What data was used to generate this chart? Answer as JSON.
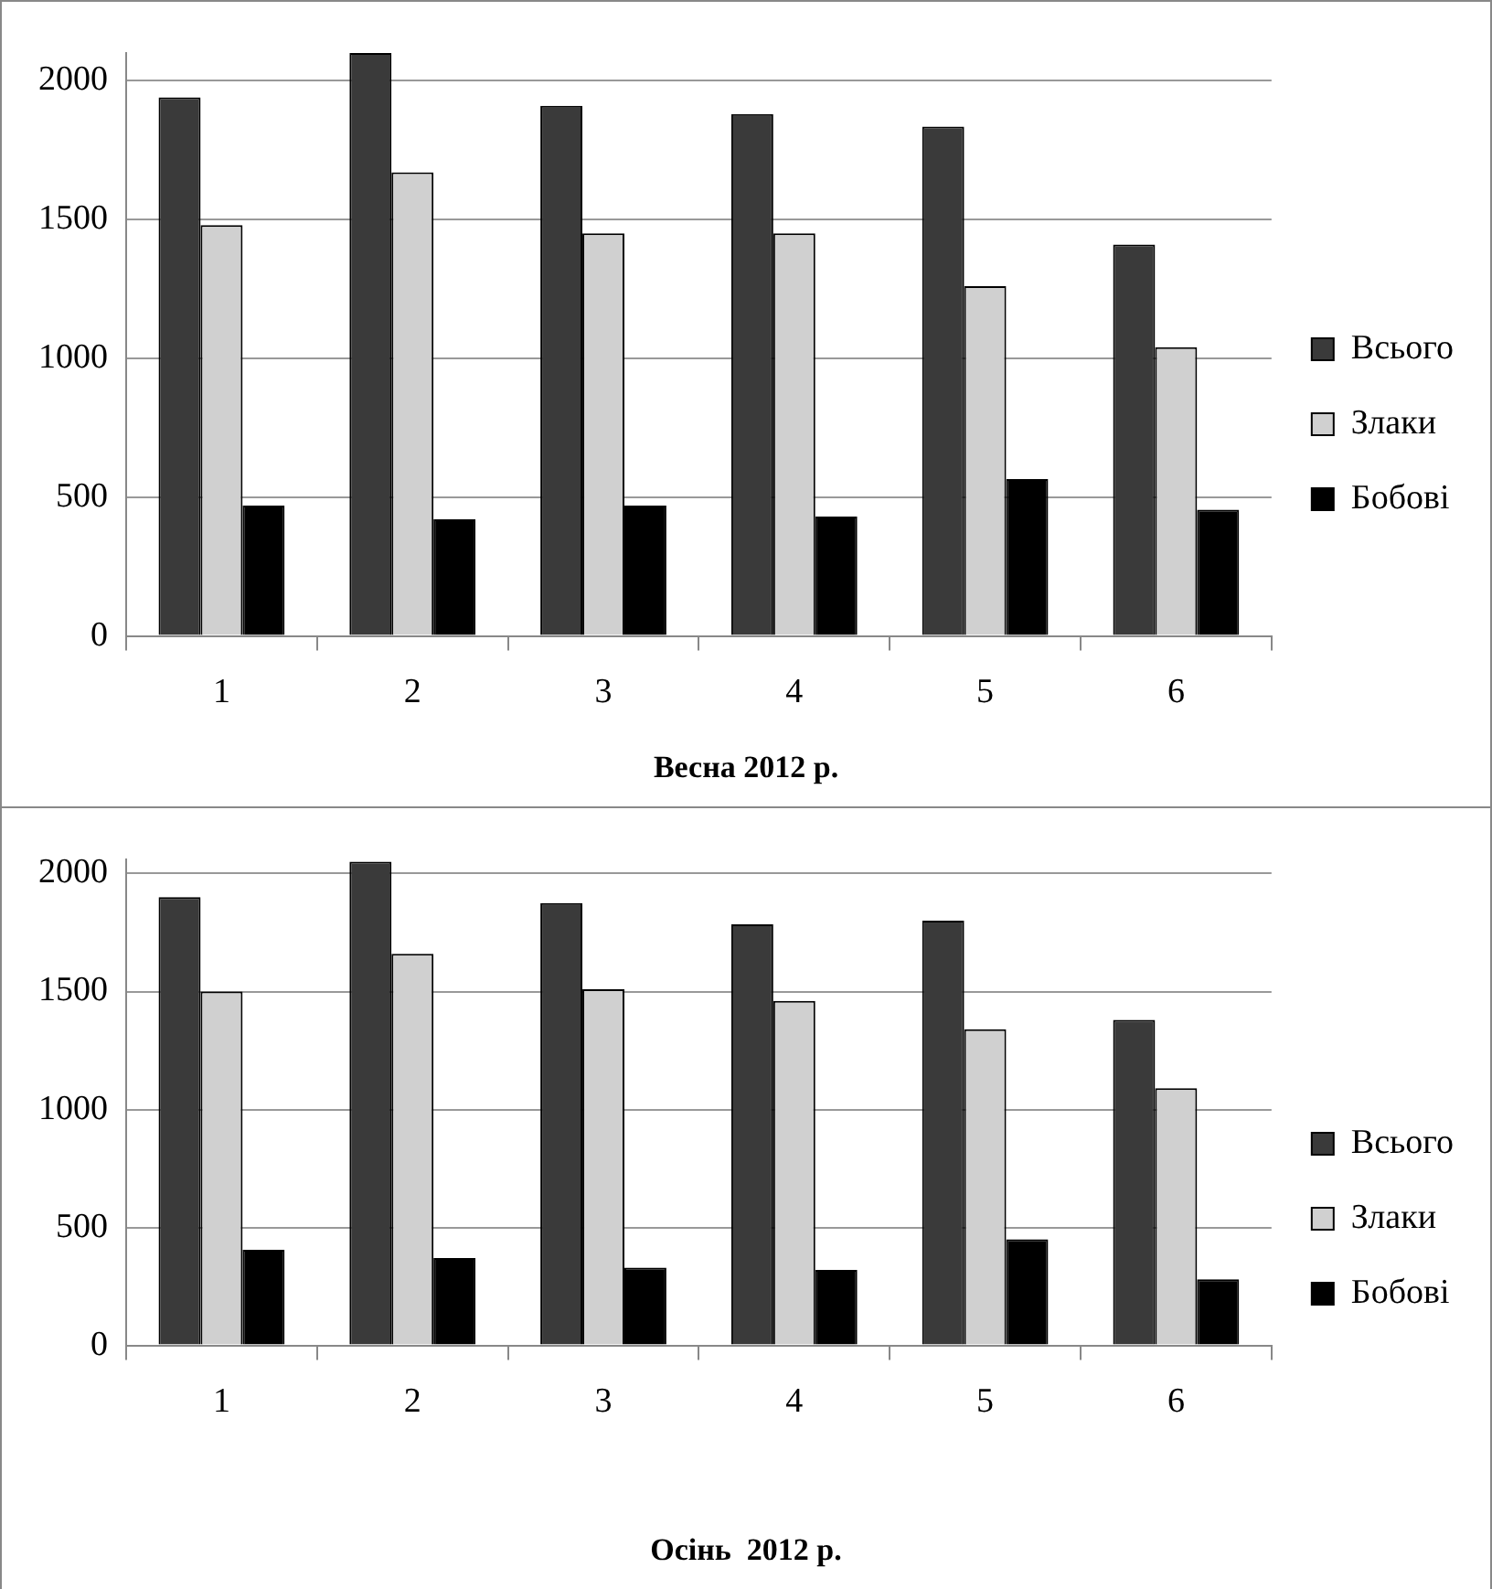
{
  "chart_data": [
    {
      "type": "bar",
      "title": "Весна 2012 р.",
      "categories": [
        "1",
        "2",
        "3",
        "4",
        "5",
        "6"
      ],
      "series": [
        {
          "name": "Всього",
          "color": "#3a3a3a",
          "values": [
            1940,
            2100,
            1910,
            1880,
            1835,
            1410
          ]
        },
        {
          "name": "Злаки",
          "color": "#d0d0d0",
          "values": [
            1480,
            1670,
            1450,
            1450,
            1260,
            1040
          ]
        },
        {
          "name": "Бобові",
          "color": "#000000",
          "values": [
            470,
            420,
            470,
            430,
            565,
            455
          ]
        }
      ],
      "ylim": [
        0,
        2100
      ],
      "yticks": [
        0,
        500,
        1000,
        1500,
        2000
      ],
      "grid": "y",
      "legend": "right"
    },
    {
      "type": "bar",
      "title": "Осінь  2012 р.",
      "categories": [
        "1",
        "2",
        "3",
        "4",
        "5",
        "6"
      ],
      "series": [
        {
          "name": "Всього",
          "color": "#3a3a3a",
          "values": [
            1900,
            2050,
            1875,
            1785,
            1800,
            1380
          ]
        },
        {
          "name": "Злаки",
          "color": "#d0d0d0",
          "values": [
            1500,
            1660,
            1510,
            1460,
            1340,
            1090
          ]
        },
        {
          "name": "Бобові",
          "color": "#000000",
          "values": [
            405,
            370,
            330,
            320,
            450,
            280
          ]
        }
      ],
      "ylim": [
        0,
        2060
      ],
      "yticks": [
        0,
        500,
        1000,
        1500,
        2000
      ],
      "grid": "y",
      "legend": "right"
    }
  ]
}
